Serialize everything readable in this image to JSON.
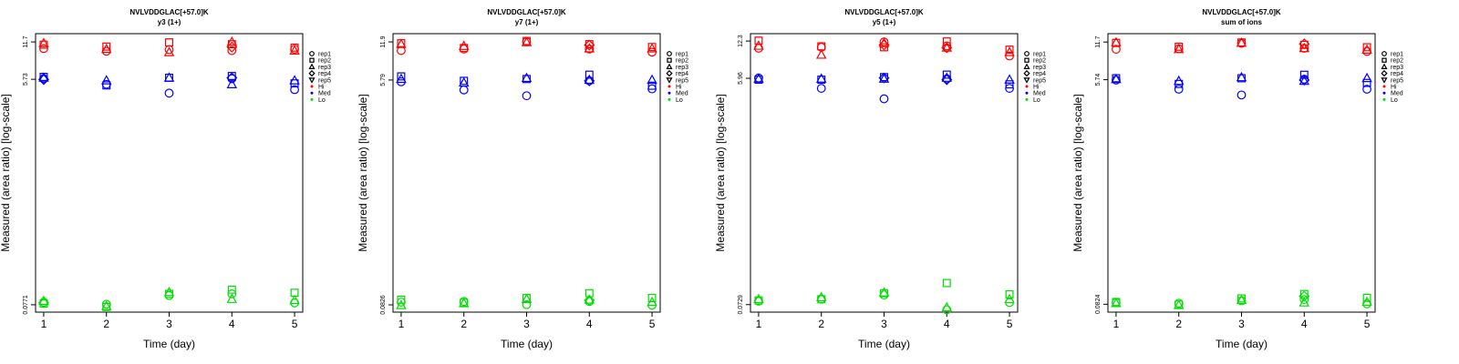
{
  "legend": {
    "shapes": [
      "rep1",
      "rep2",
      "rep3",
      "rep4",
      "rep5"
    ],
    "levels": [
      "Hi",
      "Med",
      "Lo"
    ]
  },
  "colors": {
    "Hi": "#ff0000",
    "Med": "#0000ff",
    "Lo": "#00dd00"
  },
  "chart_data": [
    {
      "type": "scatter",
      "title": "NVLVDDGLAC[+57.0]K",
      "subtitle": "y3 (1+)",
      "xlabel": "Time (day)",
      "ylabel": "Measured (area ratio) [log-scale]",
      "scale": "log",
      "x": [
        1,
        2,
        3,
        4,
        5
      ],
      "yticks": [
        "0.0771",
        "5.73",
        "11.7"
      ],
      "ylim": [
        0.067,
        13.7
      ],
      "grid": false,
      "legend_position": "right",
      "series": [
        {
          "name": "Hi",
          "values": [
            [
              10.3,
              9.8,
              10.1,
              9.9,
              10.2
            ],
            [
              11.1,
              10.7,
              11.6,
              11.2,
              10.5
            ],
            [
              11.4,
              10.2,
              9.6,
              11.7,
              9.9
            ],
            [
              null,
              null,
              null,
              10.6,
              null
            ],
            [
              null,
              null,
              null,
              null,
              null
            ]
          ]
        },
        {
          "name": "Med",
          "values": [
            [
              5.8,
              5.2,
              4.4,
              5.8,
              4.7
            ],
            [
              6.0,
              5.1,
              5.9,
              6.1,
              5.3
            ],
            [
              5.9,
              5.6,
              5.9,
              5.2,
              5.6
            ],
            [
              5.7,
              null,
              null,
              5.9,
              null
            ],
            [
              null,
              null,
              null,
              null,
              null
            ]
          ]
        },
        {
          "name": "Lo",
          "values": [
            [
              0.081,
              0.078,
              0.092,
              0.095,
              0.08
            ],
            [
              0.079,
              0.074,
              0.095,
              0.103,
              0.097
            ],
            [
              0.083,
              0.075,
              0.098,
              0.086,
              0.084
            ],
            [
              0.08,
              null,
              null,
              null,
              null
            ],
            [
              null,
              null,
              null,
              null,
              null
            ]
          ]
        }
      ]
    },
    {
      "type": "scatter",
      "title": "NVLVDDGLAC[+57.0]K",
      "subtitle": "y7 (1+)",
      "xlabel": "Time (day)",
      "ylabel": "Measured (area ratio) [log-scale]",
      "scale": "log",
      "x": [
        1,
        2,
        3,
        4,
        5
      ],
      "yticks": [
        "0.0826",
        "5.79",
        "11.9"
      ],
      "ylim": [
        0.072,
        13.9
      ],
      "grid": false,
      "legend_position": "right",
      "series": [
        {
          "name": "Hi",
          "values": [
            [
              10.1,
              10.4,
              11.9,
              10.4,
              9.8
            ],
            [
              11.6,
              10.6,
              12.1,
              11.4,
              10.8
            ],
            [
              11.4,
              11.0,
              11.8,
              10.5,
              10.5
            ],
            [
              null,
              null,
              null,
              11.2,
              null
            ],
            [
              null,
              null,
              null,
              null,
              null
            ]
          ]
        },
        {
          "name": "Med",
          "values": [
            [
              5.6,
              4.8,
              4.3,
              5.7,
              4.9
            ],
            [
              6.2,
              5.7,
              5.9,
              6.4,
              5.2
            ],
            [
              5.9,
              5.5,
              6.0,
              5.8,
              5.8
            ],
            [
              null,
              null,
              null,
              5.7,
              null
            ],
            [
              null,
              null,
              null,
              null,
              null
            ]
          ]
        },
        {
          "name": "Lo",
          "values": [
            [
              0.087,
              0.088,
              0.083,
              0.088,
              0.082
            ],
            [
              0.091,
              0.086,
              0.094,
              0.103,
              0.094
            ],
            [
              0.082,
              0.085,
              0.092,
              0.091,
              0.087
            ],
            [
              null,
              null,
              null,
              0.09,
              null
            ],
            [
              null,
              null,
              null,
              null,
              null
            ]
          ]
        }
      ]
    },
    {
      "type": "scatter",
      "title": "NVLVDDGLAC[+57.0]K",
      "subtitle": "y5 (1+)",
      "xlabel": "Time (day)",
      "ylabel": "Measured (area ratio) [log-scale]",
      "scale": "log",
      "x": [
        1,
        2,
        3,
        4,
        5
      ],
      "yticks": [
        "0.0729",
        "5.96",
        "12.3"
      ],
      "ylim": [
        0.063,
        14.2
      ],
      "grid": false,
      "legend_position": "right",
      "series": [
        {
          "name": "Hi",
          "values": [
            [
              10.7,
              10.9,
              12.1,
              11.2,
              9.2
            ],
            [
              12.4,
              11.1,
              10.9,
              12.2,
              10.4
            ],
            [
              11.2,
              9.4,
              11.8,
              10.8,
              9.9
            ],
            [
              null,
              null,
              11.4,
              10.8,
              null
            ],
            [
              null,
              null,
              null,
              null,
              null
            ]
          ]
        },
        {
          "name": "Med",
          "values": [
            [
              6.0,
              4.9,
              4.0,
              5.9,
              4.9
            ],
            [
              5.8,
              5.8,
              6.1,
              6.4,
              5.3
            ],
            [
              5.9,
              5.9,
              5.9,
              6.0,
              5.8
            ],
            [
              null,
              null,
              6.0,
              5.8,
              null
            ],
            [
              null,
              null,
              null,
              null,
              null
            ]
          ]
        },
        {
          "name": "Lo",
          "values": [
            [
              0.078,
              0.081,
              0.088,
              0.066,
              0.076
            ],
            [
              0.079,
              0.081,
              0.091,
              0.111,
              0.089
            ],
            [
              0.081,
              0.084,
              0.092,
              0.069,
              0.081
            ],
            [
              null,
              null,
              null,
              null,
              null
            ],
            [
              null,
              null,
              null,
              null,
              null
            ]
          ]
        }
      ]
    },
    {
      "type": "scatter",
      "title": "NVLVDDGLAC[+57.0]K",
      "subtitle": "sum of ions",
      "xlabel": "Time (day)",
      "ylabel": "Measured (area ratio) [log-scale]",
      "scale": "log",
      "x": [
        1,
        2,
        3,
        4,
        5
      ],
      "yticks": [
        "0.0824",
        "5.74",
        "11.7"
      ],
      "ylim": [
        0.071,
        13.7
      ],
      "grid": false,
      "legend_position": "right",
      "series": [
        {
          "name": "Hi",
          "values": [
            [
              10.2,
              10.3,
              11.4,
              10.4,
              9.8
            ],
            [
              11.5,
              10.7,
              11.6,
              11.1,
              10.6
            ],
            [
              11.6,
              10.2,
              11.5,
              10.4,
              10.1
            ],
            [
              null,
              null,
              null,
              11.3,
              null
            ],
            [
              null,
              null,
              null,
              null,
              null
            ]
          ]
        },
        {
          "name": "Med",
          "values": [
            [
              5.7,
              4.8,
              4.3,
              5.8,
              4.8
            ],
            [
              5.9,
              5.3,
              5.9,
              6.3,
              5.4
            ],
            [
              5.8,
              5.6,
              6.0,
              5.6,
              5.9
            ],
            [
              null,
              null,
              null,
              5.7,
              null
            ],
            [
              null,
              null,
              null,
              null,
              null
            ]
          ]
        },
        {
          "name": "Lo",
          "values": [
            [
              0.085,
              0.084,
              0.088,
              0.09,
              0.083
            ],
            [
              0.086,
              0.082,
              0.092,
              0.1,
              0.093
            ],
            [
              0.084,
              0.081,
              0.089,
              0.085,
              0.086
            ],
            [
              null,
              null,
              null,
              0.096,
              null
            ],
            [
              null,
              null,
              null,
              null,
              null
            ]
          ]
        }
      ]
    }
  ]
}
